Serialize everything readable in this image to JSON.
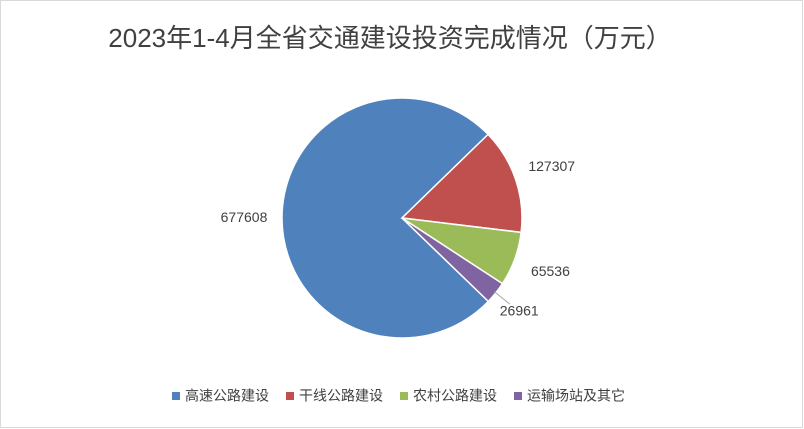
{
  "chart_data": {
    "type": "pie",
    "title": "2023年1-4月全省交通建设投资完成情况（万元）",
    "categories": [
      "高速公路建设",
      "干线公路建设",
      "农村公路建设",
      "运输场站及其它"
    ],
    "values": [
      677608,
      127307,
      65536,
      26961
    ],
    "colors": [
      "#4f81bd",
      "#c0504d",
      "#9bbb59",
      "#8064a2"
    ],
    "legend": "bottom"
  }
}
